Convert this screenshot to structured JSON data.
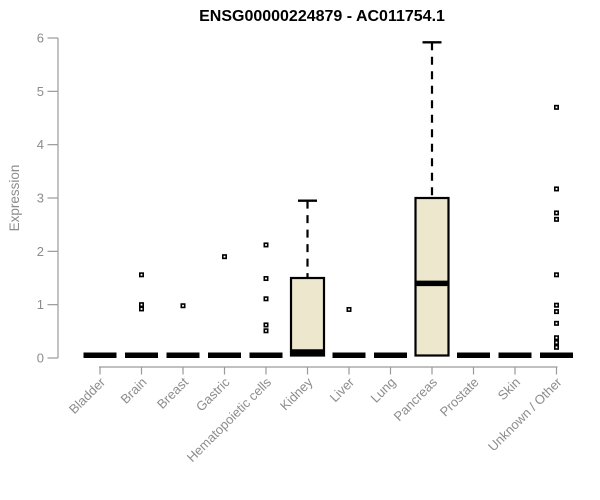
{
  "chart_data": {
    "type": "boxplot",
    "title": "ENSG00000224879 - AC011754.1",
    "xlabel": "",
    "ylabel": "Expression",
    "ylim": [
      0,
      6
    ],
    "yticks": [
      0,
      1,
      2,
      3,
      4,
      5,
      6
    ],
    "grid": false,
    "legend": false,
    "colors": {
      "box_fill": "#ECE7CD",
      "box_border": "#000000",
      "median": "#000000",
      "zero_bar": "#000000",
      "outlier_fill": "#FFFFFF",
      "outlier_border": "#000000",
      "axis": "#9A9A9A",
      "tick_label": "#8C8C8C",
      "title": "#000000",
      "background": "#FFFFFF"
    },
    "categories": [
      "Bladder",
      "Brain",
      "Breast",
      "Gastric",
      "Hematopoietic cells",
      "Kidney",
      "Liver",
      "Lung",
      "Pancreas",
      "Prostate",
      "Skin",
      "Unknown / Other"
    ],
    "series": [
      {
        "category": "Bladder",
        "q1": 0,
        "median": 0,
        "q3": 0,
        "whisker_low": 0,
        "whisker_high": 0,
        "outliers": []
      },
      {
        "category": "Brain",
        "q1": 0,
        "median": 0,
        "q3": 0,
        "whisker_low": 0,
        "whisker_high": 0,
        "outliers": [
          1.56,
          1.0,
          0.92
        ]
      },
      {
        "category": "Breast",
        "q1": 0,
        "median": 0,
        "q3": 0,
        "whisker_low": 0,
        "whisker_high": 0,
        "outliers": [
          0.98
        ]
      },
      {
        "category": "Gastric",
        "q1": 0,
        "median": 0,
        "q3": 0,
        "whisker_low": 0,
        "whisker_high": 0,
        "outliers": [
          1.9
        ]
      },
      {
        "category": "Hematopoietic cells",
        "q1": 0,
        "median": 0,
        "q3": 0,
        "whisker_low": 0,
        "whisker_high": 0,
        "outliers": [
          2.12,
          1.49,
          1.11,
          0.62,
          0.51
        ]
      },
      {
        "category": "Kidney",
        "q1": 0,
        "median": 0,
        "q3": 1.5,
        "whisker_low": 0,
        "whisker_high": 2.95,
        "outliers": []
      },
      {
        "category": "Liver",
        "q1": 0,
        "median": 0,
        "q3": 0,
        "whisker_low": 0,
        "whisker_high": 0,
        "outliers": [
          0.91
        ]
      },
      {
        "category": "Lung",
        "q1": 0,
        "median": 0,
        "q3": 0,
        "whisker_low": 0,
        "whisker_high": 0,
        "outliers": []
      },
      {
        "category": "Pancreas",
        "q1": 0,
        "median": 1.4,
        "q3": 3.0,
        "whisker_low": 0,
        "whisker_high": 5.92,
        "outliers": []
      },
      {
        "category": "Prostate",
        "q1": 0,
        "median": 0,
        "q3": 0,
        "whisker_low": 0,
        "whisker_high": 0,
        "outliers": []
      },
      {
        "category": "Skin",
        "q1": 0,
        "median": 0,
        "q3": 0,
        "whisker_low": 0,
        "whisker_high": 0,
        "outliers": []
      },
      {
        "category": "Unknown / Other",
        "q1": 0,
        "median": 0,
        "q3": 0,
        "whisker_low": 0,
        "whisker_high": 0,
        "outliers": [
          4.7,
          3.17,
          2.72,
          2.6,
          1.56,
          0.99,
          0.87,
          0.65,
          0.38,
          0.29,
          0.2
        ]
      }
    ]
  }
}
